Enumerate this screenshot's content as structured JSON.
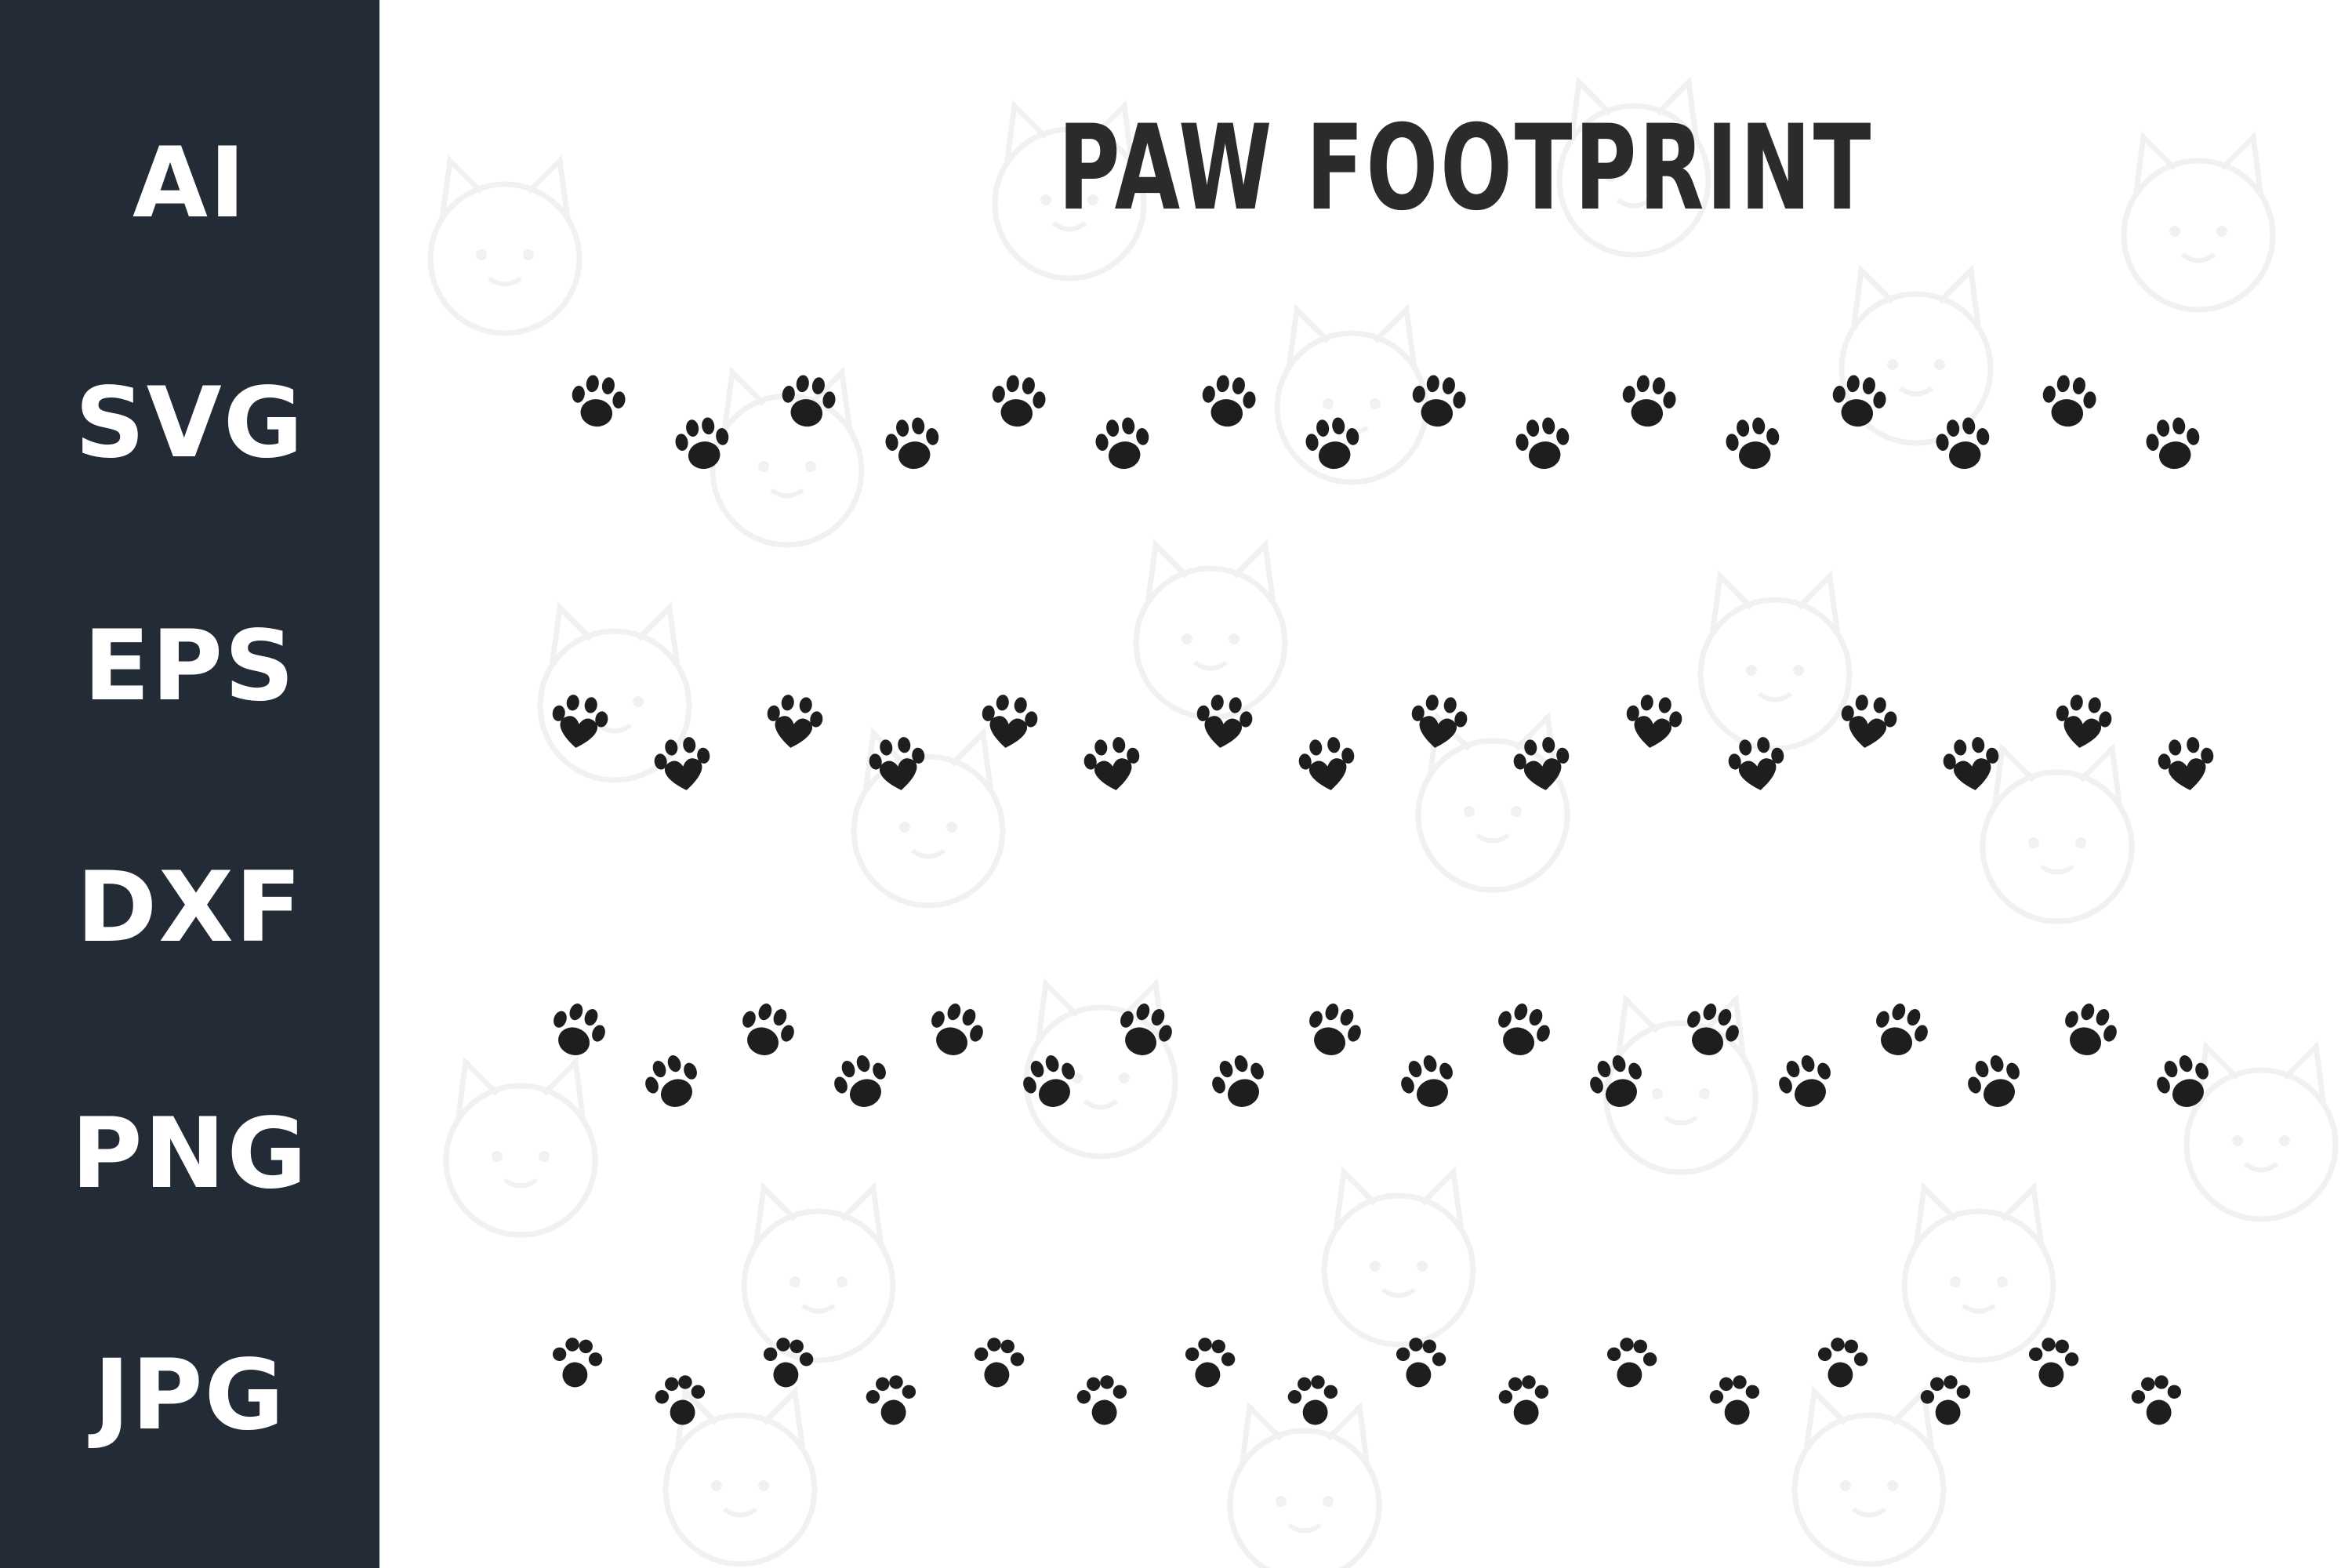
{
  "title": "PAW FOOTPRINT",
  "formats": [
    "AI",
    "SVG",
    "EPS",
    "DXF",
    "PNG",
    "JPG"
  ],
  "colors": {
    "sidebar_background": "#232b37",
    "sidebar_text": "#ffffff",
    "title_text": "#2b2b2b",
    "paw": "#1e1e1e",
    "watermark": "#f1f1f1"
  },
  "icons": {
    "paw": "paw-icon",
    "watermark": "cat-face-icon"
  },
  "paw_rows": [
    {
      "style": "rounded-pad",
      "count": 16
    },
    {
      "style": "heart-pad",
      "count": 16
    },
    {
      "style": "tilted-pad",
      "count": 18
    },
    {
      "style": "round-dots",
      "count": 16
    }
  ]
}
